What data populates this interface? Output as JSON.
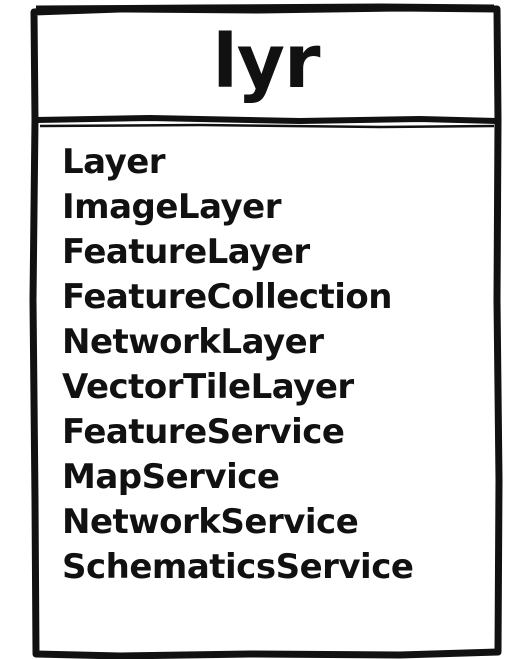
{
  "class_box": {
    "title": "lyr",
    "items": [
      "Layer",
      "ImageLayer",
      "FeatureLayer",
      "FeatureCollection",
      "NetworkLayer",
      "VectorTileLayer",
      "FeatureService",
      "MapService",
      "NetworkService",
      "SchematicsService"
    ]
  },
  "colors": {
    "ink": "#111111",
    "background": "#ffffff"
  }
}
